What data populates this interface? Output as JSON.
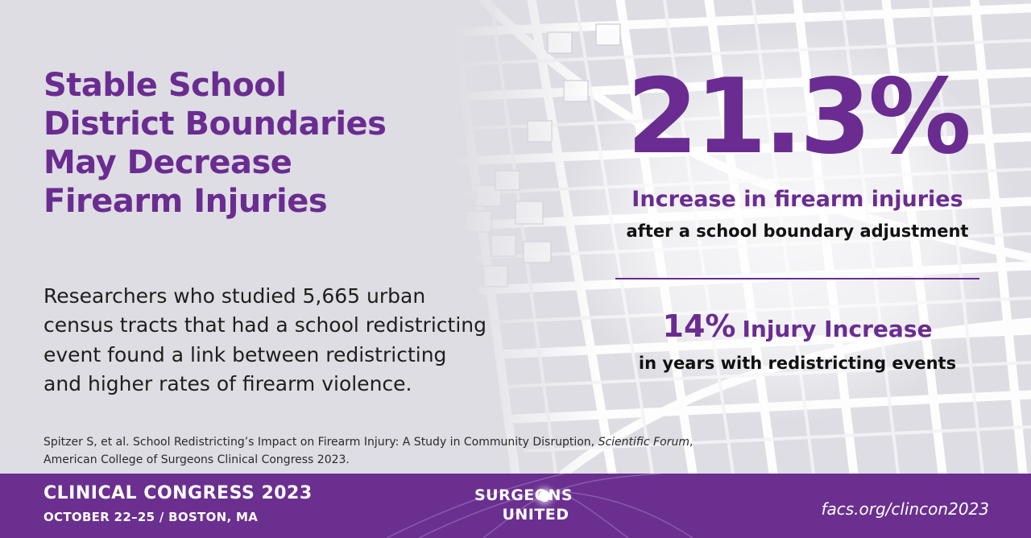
{
  "headline": [
    "Stable School",
    "District Boundaries",
    "May Decrease",
    "Firearm Injuries"
  ],
  "body": [
    "Researchers who studied 5,665 urban",
    "census tracts that had a school redistricting",
    "event found a link between redistricting",
    "and higher rates of firearm violence."
  ],
  "citation": {
    "line1_prefix": "Spitzer S, et al. School Redistricting’s Impact on Firearm Injury: A Study in Community Disruption, ",
    "line1_italic": "Scientific Forum",
    "line1_suffix": ",",
    "line2": "American College of Surgeons Clinical Congress 2023."
  },
  "stat1": {
    "value": "21.3%",
    "label": "Increase in firearm injuries",
    "sub": "after a school boundary adjustment"
  },
  "stat2": {
    "value": "14%",
    "label": "Injury Increase",
    "sub": "in years with redistricting events"
  },
  "footer": {
    "title": "CLINICAL CONGRESS 2023",
    "date": "OCTOBER 22–25 / BOSTON, MA",
    "logo_top": "SURGEONS",
    "logo_bottom": "UNITED",
    "url": "facs.org/clincon2023"
  },
  "colors": {
    "accent_purple": "#6a2c91",
    "footer_purple": "#6a2f8f",
    "background_gray": "#dedde3"
  }
}
